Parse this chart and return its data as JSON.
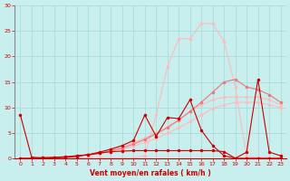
{
  "x": [
    0,
    1,
    2,
    3,
    4,
    5,
    6,
    7,
    8,
    9,
    10,
    11,
    12,
    13,
    14,
    15,
    16,
    17,
    18,
    19,
    20,
    21,
    22,
    23
  ],
  "line_big_peak": [
    0.0,
    0.0,
    0.0,
    0.0,
    0.0,
    0.0,
    0.0,
    0.0,
    0.0,
    0.0,
    0.0,
    0.5,
    8.5,
    18.0,
    23.5,
    23.5,
    26.5,
    26.5,
    23.0,
    14.0,
    0.3,
    0.2,
    0.2,
    0.1
  ],
  "line_medium_smooth": [
    0.0,
    0.0,
    0.0,
    0.0,
    0.2,
    0.4,
    0.7,
    1.0,
    1.5,
    2.0,
    2.8,
    3.7,
    4.8,
    6.0,
    7.5,
    9.2,
    11.0,
    13.0,
    15.0,
    15.5,
    14.0,
    13.5,
    12.5,
    11.0
  ],
  "line_light1": [
    0.0,
    0.0,
    0.0,
    0.1,
    0.3,
    0.5,
    0.8,
    1.2,
    1.7,
    2.3,
    3.1,
    4.0,
    5.0,
    6.2,
    7.6,
    9.2,
    10.5,
    11.5,
    12.0,
    12.0,
    12.0,
    12.0,
    11.5,
    10.5
  ],
  "line_light2": [
    0.0,
    0.0,
    0.0,
    0.1,
    0.2,
    0.4,
    0.6,
    0.9,
    1.3,
    1.8,
    2.4,
    3.1,
    3.9,
    4.9,
    6.0,
    7.2,
    8.5,
    9.8,
    10.5,
    11.0,
    11.0,
    11.0,
    10.5,
    10.0
  ],
  "line_dark_spiky": [
    8.5,
    0.2,
    0.1,
    0.1,
    0.2,
    0.4,
    0.7,
    1.2,
    1.8,
    2.5,
    3.5,
    8.5,
    4.3,
    8.0,
    7.8,
    11.5,
    5.5,
    2.5,
    0.5,
    0.0,
    0.0,
    0.0,
    0.0,
    0.0
  ],
  "line_dark_flat": [
    0.0,
    0.0,
    0.1,
    0.2,
    0.3,
    0.5,
    0.7,
    1.0,
    1.3,
    1.4,
    1.5,
    1.5,
    1.5,
    1.5,
    1.5,
    1.5,
    1.5,
    1.5,
    1.3,
    0.0,
    1.2,
    15.5,
    1.2,
    0.5
  ],
  "bg_color": "#c8eeee",
  "grid_color": "#aadddd",
  "color_dark": "#cc0000",
  "color_mid": "#ee7777",
  "color_light": "#ffbbbb",
  "xlabel": "Vent moyen/en rafales ( km/h )",
  "ylim": [
    0,
    30
  ],
  "xlim": [
    -0.5,
    23.5
  ],
  "yticks": [
    0,
    5,
    10,
    15,
    20,
    25,
    30
  ],
  "xticks": [
    0,
    1,
    2,
    3,
    4,
    5,
    6,
    7,
    8,
    9,
    10,
    11,
    12,
    13,
    14,
    15,
    16,
    17,
    18,
    19,
    20,
    21,
    22,
    23
  ]
}
